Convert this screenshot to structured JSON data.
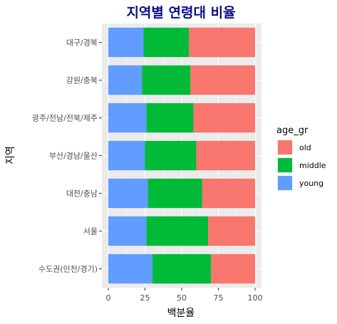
{
  "chart_data": {
    "type": "bar",
    "orientation": "horizontal",
    "stacked": true,
    "title": "지역별 연령대 비율",
    "xlabel": "백분율",
    "ylabel": "지역",
    "xlim": [
      0,
      100
    ],
    "xticks": [
      0,
      25,
      50,
      75,
      100
    ],
    "categories": [
      "수도권(인천/경기)",
      "서울",
      "대전/충남",
      "부산/경남/울산",
      "광주/전남/전북/제주",
      "강원/충북",
      "대구/경북"
    ],
    "series": [
      {
        "name": "young",
        "color": "#619CFF",
        "values": [
          30,
          26,
          27,
          25,
          26,
          23,
          24
        ]
      },
      {
        "name": "middle",
        "color": "#00BA38",
        "values": [
          40,
          42,
          37,
          35,
          32,
          33,
          31
        ]
      },
      {
        "name": "old",
        "color": "#F8766D",
        "values": [
          30,
          32,
          36,
          40,
          42,
          44,
          45
        ]
      }
    ],
    "legend": {
      "title": "age_gr",
      "position": "right",
      "entries": [
        {
          "label": "old",
          "color": "#F8766D"
        },
        {
          "label": "middle",
          "color": "#00BA38"
        },
        {
          "label": "young",
          "color": "#619CFF"
        }
      ]
    },
    "grid": true,
    "panel_background": "#EBEBEB",
    "grid_color": "#FFFFFF"
  }
}
